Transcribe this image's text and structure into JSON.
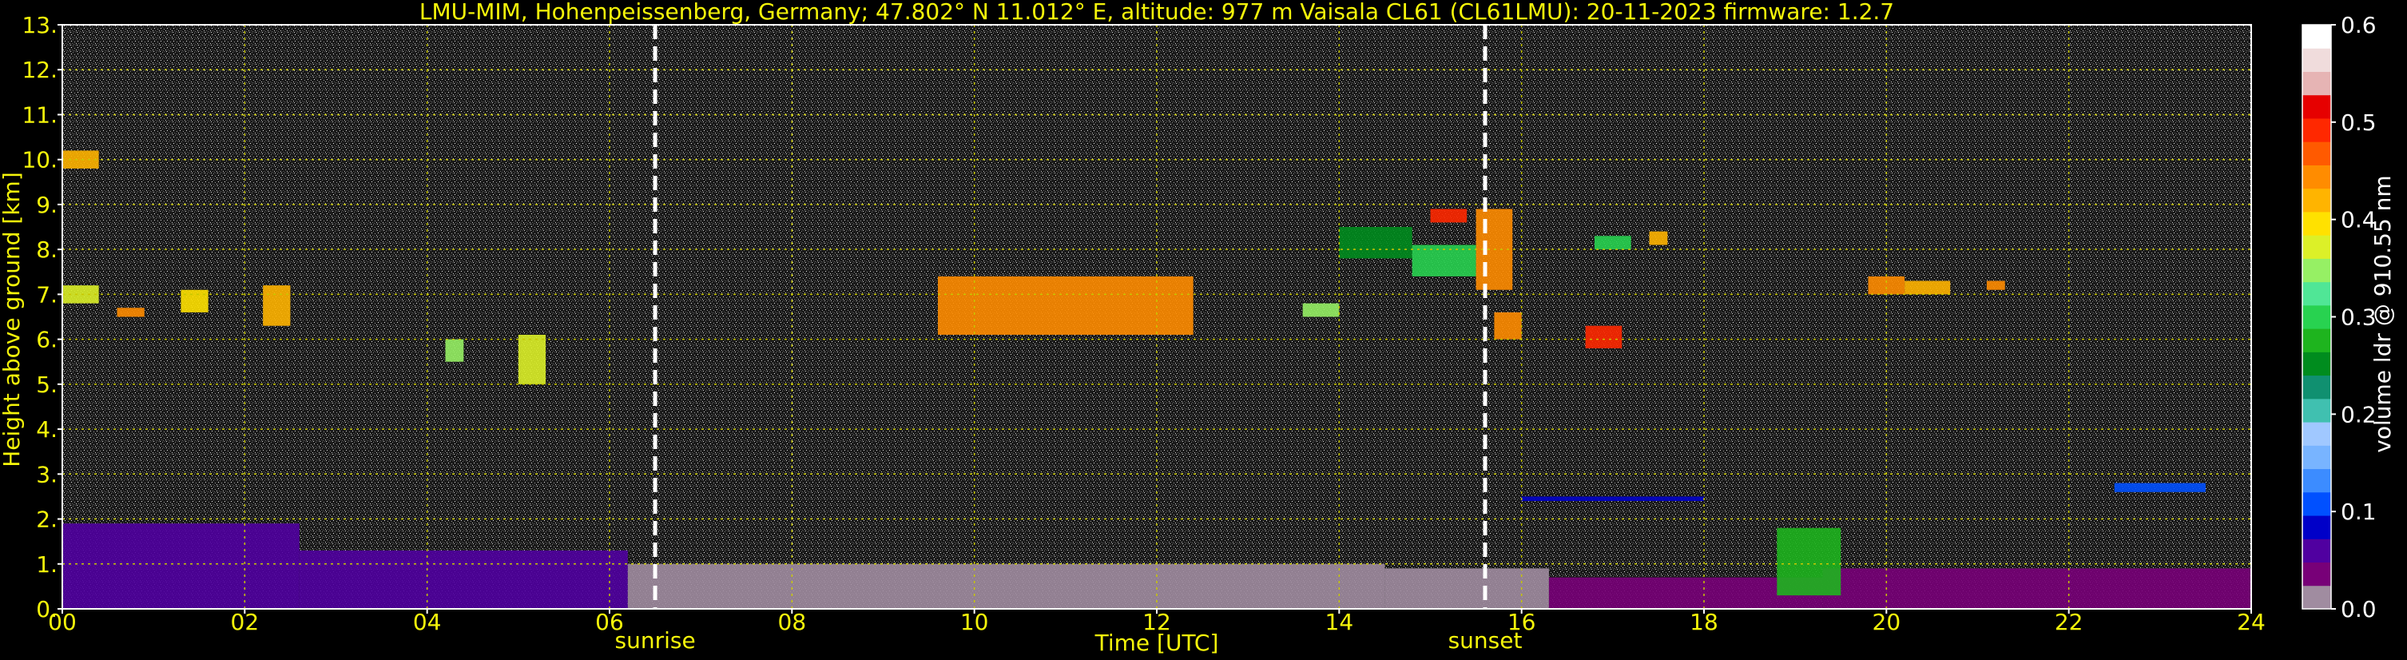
{
  "chart_data": {
    "type": "heatmap",
    "title": "LMU-MIM, Hohenpeissenberg, Germany; 47.802° N 11.012° E, altitude: 977 m    Vaisala CL61 (CL61LMU): 20-11-2023    firmware: 1.2.7",
    "xlabel": "Time [UTC]",
    "ylabel": "Height above ground [km]",
    "xlim": [
      0,
      24
    ],
    "ylim": [
      0,
      13
    ],
    "x_ticks": [
      "00",
      "02",
      "04",
      "06",
      "08",
      "10",
      "12",
      "14",
      "16",
      "18",
      "20",
      "22",
      "24"
    ],
    "x_tick_values": [
      0,
      2,
      4,
      6,
      8,
      10,
      12,
      14,
      16,
      18,
      20,
      22,
      24
    ],
    "y_ticks": [
      "0.",
      "1.",
      "2.",
      "3.",
      "4.",
      "5.",
      "6.",
      "7.",
      "8.",
      "9.",
      "10.",
      "11.",
      "12.",
      "13."
    ],
    "y_tick_values": [
      0,
      1,
      2,
      3,
      4,
      5,
      6,
      7,
      8,
      9,
      10,
      11,
      12,
      13
    ],
    "grid": true,
    "event_markers": [
      {
        "label": "sunrise",
        "time": 6.5
      },
      {
        "label": "sunset",
        "time": 15.6
      }
    ],
    "colorbar": {
      "label": "volume ldr @ 910.55 nm",
      "range": [
        0.0,
        0.6
      ],
      "ticks": [
        "0.0",
        "0.1",
        "0.2",
        "0.3",
        "0.4",
        "0.5",
        "0.6"
      ],
      "tick_values": [
        0.0,
        0.1,
        0.2,
        0.3,
        0.4,
        0.5,
        0.6
      ],
      "colors": [
        "#a08ca0",
        "#780078",
        "#5000a0",
        "#0000c8",
        "#0050ff",
        "#3c8cff",
        "#78b4ff",
        "#a0c8ff",
        "#40c0b0",
        "#109070",
        "#008c1e",
        "#1eb41e",
        "#28d250",
        "#50e696",
        "#96f064",
        "#dcf028",
        "#ffe100",
        "#ffb400",
        "#ff8c00",
        "#ff5a00",
        "#ff2800",
        "#e60000",
        "#e6b4b4",
        "#f0dcdc",
        "#ffffff"
      ]
    },
    "colors": {
      "text": "#f5f50a",
      "grid": "#c8c800",
      "background": "#000000",
      "markers": "#ffffff"
    },
    "features": [
      {
        "time": [
          0,
          2.6
        ],
        "height": [
          0,
          1.9
        ],
        "ldr": 0.05
      },
      {
        "time": [
          2.6,
          6.2
        ],
        "height": [
          0,
          1.3
        ],
        "ldr": 0.05
      },
      {
        "time": [
          6.2,
          14.5
        ],
        "height": [
          0,
          1.0
        ],
        "ldr": 0.02
      },
      {
        "time": [
          14.5,
          16.3
        ],
        "height": [
          0,
          0.9
        ],
        "ldr": 0.02
      },
      {
        "time": [
          16.3,
          19.3
        ],
        "height": [
          0,
          0.7
        ],
        "ldr": 0.03
      },
      {
        "time": [
          19.3,
          24
        ],
        "height": [
          0,
          0.9
        ],
        "ldr": 0.03
      },
      {
        "time": [
          16.0,
          18.0
        ],
        "height": [
          2.4,
          2.5
        ],
        "ldr": 0.08
      },
      {
        "time": [
          18.8,
          19.5
        ],
        "height": [
          0.3,
          1.8
        ],
        "ldr": 0.28
      },
      {
        "time": [
          22.5,
          23.5
        ],
        "height": [
          2.6,
          2.8
        ],
        "ldr": 0.1
      },
      {
        "time": [
          0,
          0.4
        ],
        "height": [
          9.8,
          10.2
        ],
        "ldr": 0.42
      },
      {
        "time": [
          0,
          0.4
        ],
        "height": [
          6.8,
          7.2
        ],
        "ldr": 0.38
      },
      {
        "time": [
          0.6,
          0.9
        ],
        "height": [
          6.5,
          6.7
        ],
        "ldr": 0.45
      },
      {
        "time": [
          1.3,
          1.6
        ],
        "height": [
          6.6,
          7.1
        ],
        "ldr": 0.4
      },
      {
        "time": [
          2.2,
          2.5
        ],
        "height": [
          6.3,
          7.2
        ],
        "ldr": 0.42
      },
      {
        "time": [
          4.2,
          4.4
        ],
        "height": [
          5.5,
          6.0
        ],
        "ldr": 0.35
      },
      {
        "time": [
          5.0,
          5.3
        ],
        "height": [
          5.0,
          6.1
        ],
        "ldr": 0.38
      },
      {
        "time": [
          9.6,
          12.4
        ],
        "height": [
          6.1,
          7.4
        ],
        "ldr": 0.45
      },
      {
        "time": [
          13.6,
          14.0
        ],
        "height": [
          6.5,
          6.8
        ],
        "ldr": 0.35
      },
      {
        "time": [
          14.0,
          14.8
        ],
        "height": [
          7.8,
          8.5
        ],
        "ldr": 0.25
      },
      {
        "time": [
          14.8,
          15.5
        ],
        "height": [
          7.4,
          8.1
        ],
        "ldr": 0.3
      },
      {
        "time": [
          15.0,
          15.4
        ],
        "height": [
          8.6,
          8.9
        ],
        "ldr": 0.48
      },
      {
        "time": [
          15.5,
          15.9
        ],
        "height": [
          7.1,
          8.9
        ],
        "ldr": 0.45
      },
      {
        "time": [
          15.7,
          16.0
        ],
        "height": [
          6.0,
          6.6
        ],
        "ldr": 0.45
      },
      {
        "time": [
          16.7,
          17.1
        ],
        "height": [
          5.8,
          6.3
        ],
        "ldr": 0.48
      },
      {
        "time": [
          16.8,
          17.2
        ],
        "height": [
          8.0,
          8.3
        ],
        "ldr": 0.3
      },
      {
        "time": [
          17.4,
          17.6
        ],
        "height": [
          8.1,
          8.4
        ],
        "ldr": 0.42
      },
      {
        "time": [
          19.8,
          20.2
        ],
        "height": [
          7.0,
          7.4
        ],
        "ldr": 0.45
      },
      {
        "time": [
          20.2,
          20.7
        ],
        "height": [
          7.0,
          7.3
        ],
        "ldr": 0.42
      },
      {
        "time": [
          21.1,
          21.3
        ],
        "height": [
          7.1,
          7.3
        ],
        "ldr": 0.45
      }
    ]
  }
}
